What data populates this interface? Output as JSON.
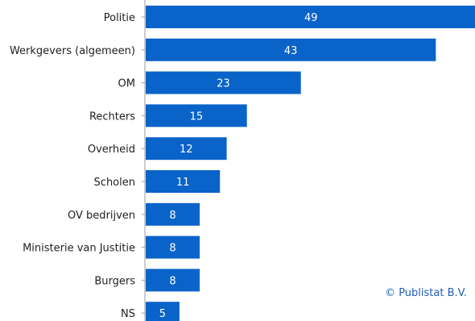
{
  "chart_data": {
    "type": "bar",
    "orientation": "horizontal",
    "categories": [
      "Politie",
      "Werkgevers (algemeen)",
      "OM",
      "Rechters",
      "Overheid",
      "Scholen",
      "OV bedrijven",
      "Ministerie van Justitie",
      "Burgers",
      "NS"
    ],
    "values": [
      49,
      43,
      23,
      15,
      12,
      11,
      8,
      8,
      8,
      5
    ],
    "data_labels": [
      "49",
      "43",
      "23",
      "15",
      "12",
      "11",
      "8",
      "8",
      "8",
      "5"
    ],
    "bar_color": "#0a63c9",
    "label_color": "#ffffff",
    "grid": false,
    "legend": "none"
  },
  "footer": {
    "copyright": "© Publistat B.V."
  }
}
